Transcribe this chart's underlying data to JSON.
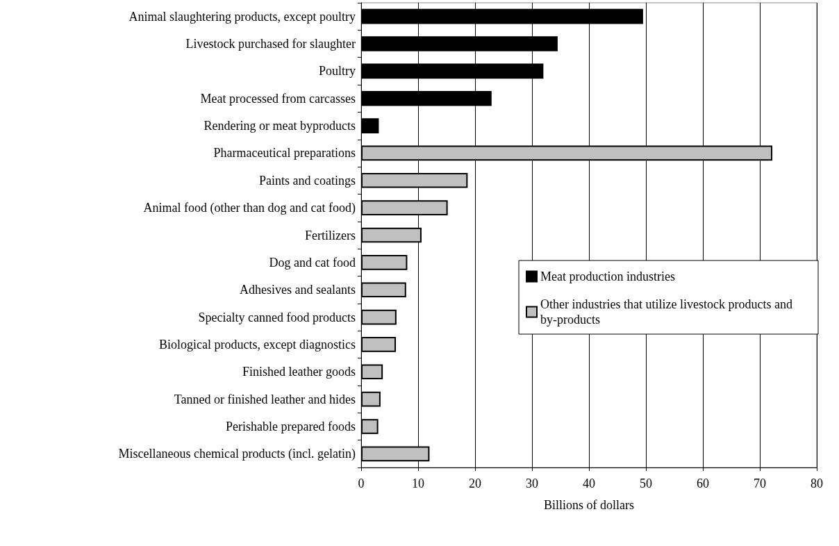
{
  "chart_data": {
    "type": "bar",
    "orientation": "horizontal",
    "xlabel": "Billions of dollars",
    "categories": [
      "Animal slaughtering products, except poultry",
      "Livestock purchased for slaughter",
      "Poultry",
      "Meat processed from carcasses",
      "Rendering or meat byproducts",
      "Pharmaceutical preparations",
      "Paints and coatings",
      "Animal food (other than dog and cat food)",
      "Fertilizers",
      "Dog and cat food",
      "Adhesives and sealants",
      "Specialty canned food products",
      "Biological products, except diagnostics",
      "Finished leather goods",
      "Tanned or finished leather and hides",
      "Perishable prepared foods",
      "Miscellaneous chemical products (incl. gelatin)"
    ],
    "series": [
      {
        "name": "Meat production industries",
        "color": "#000000",
        "values": [
          49.5,
          34.5,
          32.0,
          22.9,
          3.1,
          null,
          null,
          null,
          null,
          null,
          null,
          null,
          null,
          null,
          null,
          null,
          null
        ]
      },
      {
        "name": "Other industries that utilize livestock products and by-products",
        "color": "#c0c0c0",
        "values": [
          null,
          null,
          null,
          null,
          null,
          72.2,
          18.7,
          15.2,
          10.6,
          8.1,
          7.9,
          6.2,
          6.1,
          3.8,
          3.4,
          3.0,
          12.0
        ]
      }
    ],
    "xlim": [
      0,
      80
    ],
    "xticks": [
      0,
      10,
      20,
      30,
      40,
      50,
      60,
      70,
      80
    ],
    "grid": "x",
    "legend": "right"
  }
}
